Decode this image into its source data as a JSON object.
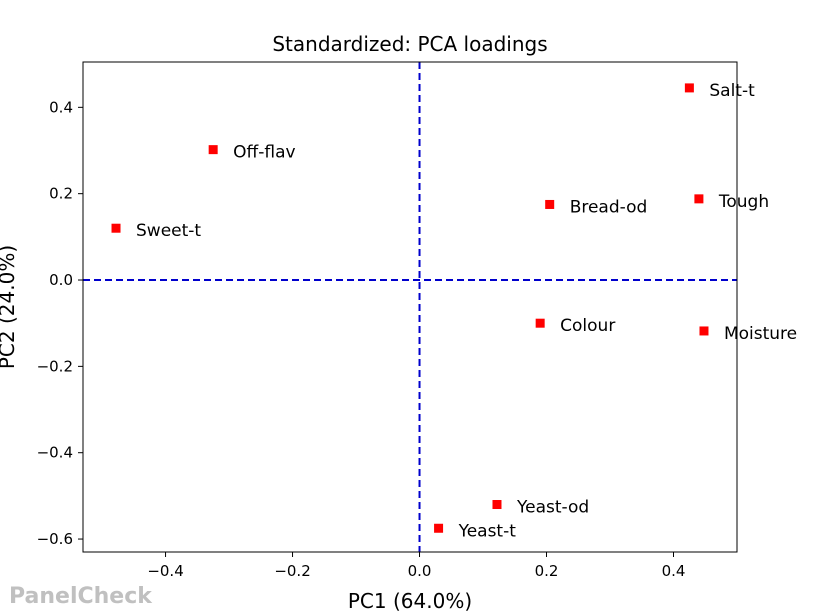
{
  "watermark": "PanelCheck",
  "chart_data": {
    "type": "scatter",
    "title": "Standardized: PCA loadings",
    "xlabel": "PC1 (64.0%)",
    "ylabel": "PC2 (24.0%)",
    "xlim": [
      -0.53,
      0.5
    ],
    "ylim": [
      -0.63,
      0.505
    ],
    "xticks": [
      -0.4,
      -0.2,
      0.0,
      0.2,
      0.4
    ],
    "xtick_labels": [
      "−0.4",
      "−0.2",
      "0.0",
      "0.2",
      "0.4"
    ],
    "yticks": [
      -0.6,
      -0.4,
      -0.2,
      0.0,
      0.2,
      0.4
    ],
    "ytick_labels": [
      "−0.6",
      "−0.4",
      "−0.2",
      "0.0",
      "0.2",
      "0.4"
    ],
    "reference_lines": {
      "x": 0.0,
      "y": 0.0,
      "color": "#0000cc",
      "style": "dashed"
    },
    "marker_color": "#ff0000",
    "grid": false,
    "points": [
      {
        "label": "Salt-t",
        "x": 0.425,
        "y": 0.445
      },
      {
        "label": "Off-flav",
        "x": -0.325,
        "y": 0.302
      },
      {
        "label": "Tough",
        "x": 0.44,
        "y": 0.188
      },
      {
        "label": "Bread-od",
        "x": 0.205,
        "y": 0.175
      },
      {
        "label": "Sweet-t",
        "x": -0.478,
        "y": 0.12
      },
      {
        "label": "Colour",
        "x": 0.19,
        "y": -0.1
      },
      {
        "label": "Moisture",
        "x": 0.448,
        "y": -0.118
      },
      {
        "label": "Yeast-od",
        "x": 0.122,
        "y": -0.52
      },
      {
        "label": "Yeast-t",
        "x": 0.03,
        "y": -0.575
      }
    ]
  }
}
